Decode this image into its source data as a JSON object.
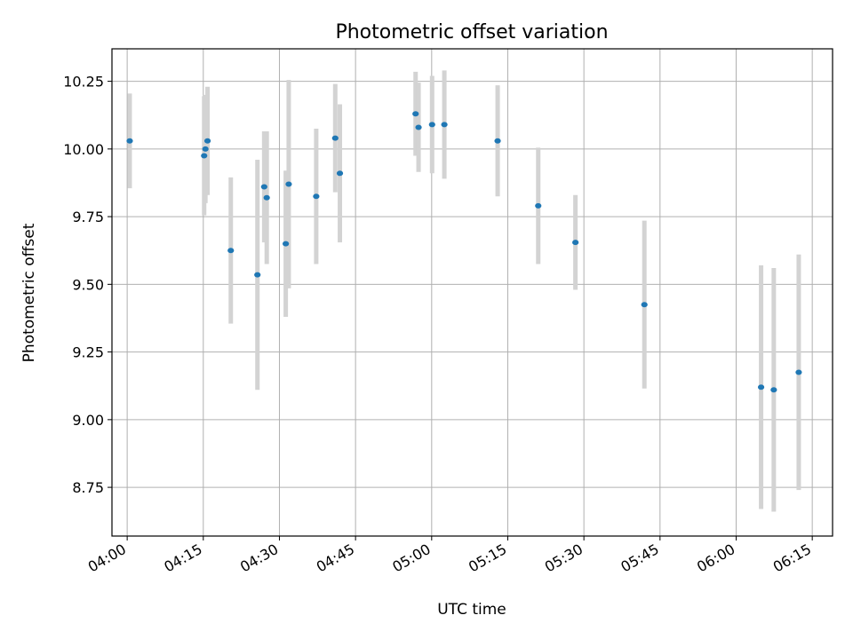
{
  "chart_data": {
    "type": "scatter",
    "title": "Photometric offset variation",
    "xlabel": "UTC time",
    "ylabel": "Photometric offset",
    "xlim": [
      "03:57",
      "06:19"
    ],
    "ylim": [
      8.57,
      10.37
    ],
    "grid": true,
    "x_ticks": [
      "04:00",
      "04:15",
      "04:30",
      "04:45",
      "05:00",
      "05:15",
      "05:30",
      "05:45",
      "06:00",
      "06:15"
    ],
    "y_ticks": [
      "8.75",
      "9.00",
      "9.25",
      "9.50",
      "9.75",
      "10.00",
      "10.25"
    ],
    "point_color": "#1f77b4",
    "errorbar_color": "#d3d3d3",
    "points": [
      {
        "x": "04:00:30",
        "y": 10.03,
        "err": 0.175
      },
      {
        "x": "04:15:10",
        "y": 9.975,
        "err": 0.22
      },
      {
        "x": "04:15:25",
        "y": 10.0,
        "err": 0.2
      },
      {
        "x": "04:15:50",
        "y": 10.03,
        "err": 0.2
      },
      {
        "x": "04:20:25",
        "y": 9.625,
        "err": 0.27
      },
      {
        "x": "04:25:40",
        "y": 9.535,
        "err": 0.425
      },
      {
        "x": "04:27:00",
        "y": 9.86,
        "err": 0.205
      },
      {
        "x": "04:27:30",
        "y": 9.82,
        "err": 0.245
      },
      {
        "x": "04:31:15",
        "y": 9.65,
        "err": 0.27
      },
      {
        "x": "04:31:50",
        "y": 9.87,
        "err": 0.385
      },
      {
        "x": "04:37:15",
        "y": 9.825,
        "err": 0.25
      },
      {
        "x": "04:41:00",
        "y": 10.04,
        "err": 0.2
      },
      {
        "x": "04:41:55",
        "y": 9.91,
        "err": 0.255
      },
      {
        "x": "04:56:50",
        "y": 10.13,
        "err": 0.155
      },
      {
        "x": "04:57:25",
        "y": 10.08,
        "err": 0.165
      },
      {
        "x": "05:00:05",
        "y": 10.09,
        "err": 0.18
      },
      {
        "x": "05:02:30",
        "y": 10.09,
        "err": 0.2
      },
      {
        "x": "05:13:00",
        "y": 10.03,
        "err": 0.205
      },
      {
        "x": "05:21:00",
        "y": 9.79,
        "err": 0.215
      },
      {
        "x": "05:28:20",
        "y": 9.655,
        "err": 0.175
      },
      {
        "x": "05:41:55",
        "y": 9.425,
        "err": 0.31
      },
      {
        "x": "06:04:55",
        "y": 9.12,
        "err": 0.45
      },
      {
        "x": "06:07:25",
        "y": 9.11,
        "err": 0.45
      },
      {
        "x": "06:12:20",
        "y": 9.175,
        "err": 0.435
      }
    ]
  }
}
